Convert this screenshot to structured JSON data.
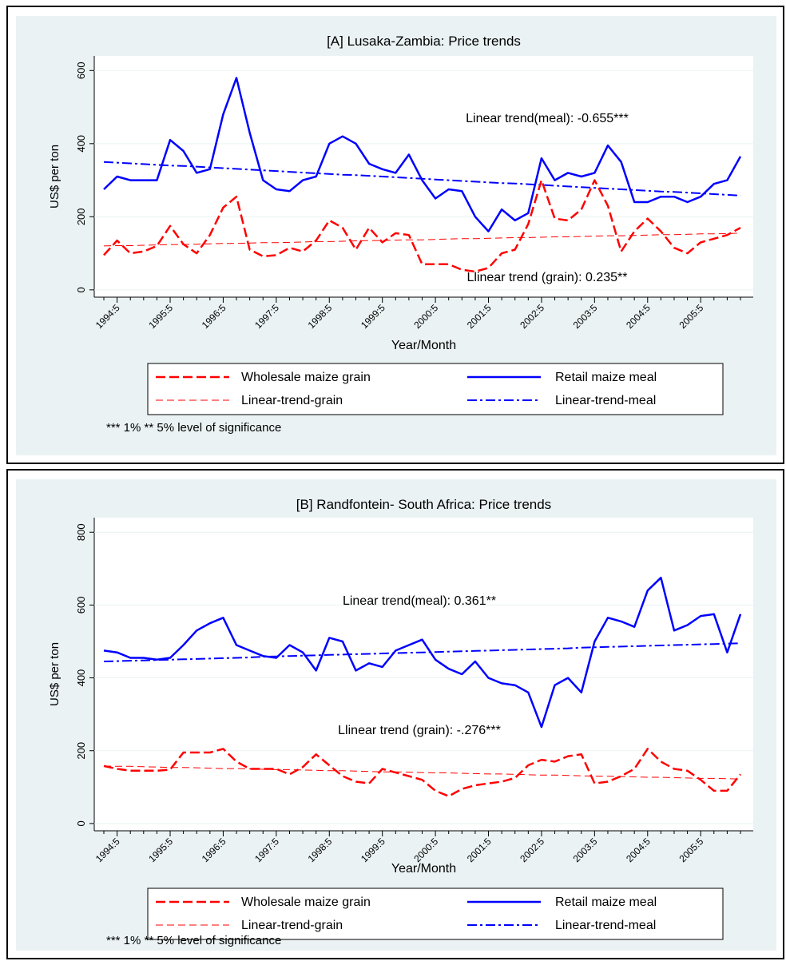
{
  "chart_data": [
    {
      "type": "line",
      "title": "[A] Lusaka-Zambia: Price trends",
      "x_label": "Year/Month",
      "y_label": "US$ per ton",
      "categories": [
        null,
        "1994:5",
        null,
        null,
        null,
        "1995:5",
        null,
        null,
        null,
        "1996:5",
        null,
        null,
        null,
        "1997:5",
        null,
        null,
        null,
        "1998:5",
        null,
        null,
        null,
        "1999:5",
        null,
        null,
        null,
        "2000:5",
        null,
        null,
        null,
        "2001:5",
        null,
        null,
        null,
        "2002:5",
        null,
        null,
        null,
        "2003:5",
        null,
        null,
        null,
        "2004:5",
        null,
        null,
        null,
        "2005:5",
        null,
        null,
        null
      ],
      "ylim": [
        -20,
        640
      ],
      "yticks": [
        0,
        200,
        400,
        600
      ],
      "grid": true,
      "series": [
        {
          "name": "Wholesale maize grain",
          "color": "#ff0000",
          "line_style": "dashed",
          "line_width": 2.5,
          "values": [
            95,
            135,
            100,
            105,
            120,
            175,
            125,
            100,
            150,
            225,
            255,
            110,
            92,
            95,
            115,
            105,
            135,
            190,
            170,
            110,
            170,
            130,
            155,
            150,
            70,
            70,
            70,
            55,
            50,
            60,
            100,
            110,
            180,
            300,
            195,
            190,
            220,
            300,
            230,
            105,
            160,
            195,
            160,
            115,
            100,
            130,
            140,
            150,
            170
          ]
        },
        {
          "name": "Retail maize meal",
          "color": "#0000ff",
          "line_style": "solid",
          "line_width": 2.5,
          "values": [
            275,
            310,
            300,
            300,
            300,
            410,
            380,
            320,
            330,
            480,
            580,
            430,
            300,
            275,
            270,
            300,
            310,
            400,
            420,
            400,
            345,
            330,
            320,
            370,
            300,
            250,
            275,
            270,
            200,
            160,
            220,
            190,
            210,
            360,
            300,
            320,
            310,
            320,
            395,
            350,
            240,
            240,
            255,
            255,
            240,
            255,
            290,
            300,
            365
          ]
        },
        {
          "name": "Linear-trend-grain",
          "color": "#ff0000",
          "line_style": "dashed",
          "line_width": 1,
          "values": [
            120,
            121,
            121,
            122,
            123,
            124,
            124,
            125,
            126,
            127,
            127,
            128,
            129,
            129,
            130,
            131,
            132,
            132,
            133,
            134,
            135,
            135,
            136,
            137,
            137,
            138,
            139,
            140,
            140,
            141,
            142,
            143,
            143,
            144,
            145,
            145,
            146,
            147,
            148,
            148,
            149,
            150,
            151,
            151,
            152,
            153,
            153,
            154,
            155
          ]
        },
        {
          "name": "Linear-trend-meal",
          "color": "#0000ff",
          "line_style": "dashdot",
          "line_width": 2,
          "values": [
            350,
            348,
            346,
            344,
            342,
            340,
            339,
            337,
            335,
            333,
            331,
            329,
            327,
            325,
            323,
            321,
            319,
            317,
            315,
            314,
            312,
            310,
            308,
            306,
            304,
            302,
            300,
            298,
            296,
            294,
            292,
            291,
            289,
            287,
            285,
            283,
            281,
            279,
            277,
            275,
            273,
            271,
            269,
            268,
            266,
            264,
            262,
            260,
            258
          ]
        }
      ],
      "annotations": [
        "Linear trend(meal): -0.655***",
        "Llinear trend (grain): 0.235**"
      ],
      "note": "*** 1%  ** 5% level of significance"
    },
    {
      "type": "line",
      "title": "[B] Randfontein- South Africa: Price trends",
      "x_label": "Year/Month",
      "y_label": "US$ per ton",
      "categories": [
        null,
        "1994:5",
        null,
        null,
        null,
        "1995:5",
        null,
        null,
        null,
        "1996:5",
        null,
        null,
        null,
        "1997:5",
        null,
        null,
        null,
        "1998:5",
        null,
        null,
        null,
        "1999:5",
        null,
        null,
        null,
        "2000:5",
        null,
        null,
        null,
        "2001:5",
        null,
        null,
        null,
        "2002:5",
        null,
        null,
        null,
        "2003:5",
        null,
        null,
        null,
        "2004:5",
        null,
        null,
        null,
        "2005:5",
        null,
        null,
        null
      ],
      "ylim": [
        -20,
        840
      ],
      "yticks": [
        0,
        200,
        400,
        600,
        800
      ],
      "grid": true,
      "series": [
        {
          "name": "Wholesale maize grain",
          "color": "#ff0000",
          "line_style": "dashed",
          "line_width": 2.5,
          "values": [
            158,
            150,
            145,
            145,
            145,
            148,
            195,
            195,
            195,
            205,
            170,
            150,
            150,
            150,
            135,
            155,
            190,
            160,
            130,
            115,
            110,
            150,
            140,
            130,
            120,
            90,
            75,
            95,
            105,
            110,
            115,
            125,
            160,
            175,
            170,
            185,
            190,
            110,
            115,
            130,
            150,
            205,
            170,
            150,
            145,
            120,
            90,
            90,
            135
          ]
        },
        {
          "name": "Retail maize meal",
          "color": "#0000ff",
          "line_style": "solid",
          "line_width": 2.5,
          "values": [
            475,
            470,
            455,
            455,
            450,
            455,
            490,
            530,
            550,
            565,
            490,
            475,
            460,
            455,
            490,
            470,
            420,
            510,
            500,
            420,
            440,
            430,
            475,
            490,
            505,
            450,
            425,
            410,
            445,
            400,
            385,
            380,
            360,
            265,
            380,
            400,
            360,
            500,
            565,
            555,
            540,
            640,
            675,
            530,
            545,
            570,
            575,
            470,
            575
          ]
        },
        {
          "name": "Linear-trend-grain",
          "color": "#ff0000",
          "line_style": "dashed",
          "line_width": 1,
          "values": [
            158,
            157,
            157,
            156,
            155,
            154,
            154,
            153,
            152,
            151,
            151,
            150,
            149,
            148,
            148,
            147,
            146,
            145,
            145,
            144,
            143,
            142,
            142,
            141,
            140,
            139,
            139,
            138,
            137,
            136,
            136,
            135,
            134,
            133,
            133,
            132,
            131,
            130,
            130,
            129,
            128,
            127,
            127,
            126,
            125,
            124,
            124,
            123,
            122
          ]
        },
        {
          "name": "Linear-trend-meal",
          "color": "#0000ff",
          "line_style": "dashdot",
          "line_width": 2,
          "values": [
            445,
            446,
            447,
            448,
            449,
            450,
            451,
            452,
            453,
            454,
            455,
            456,
            458,
            459,
            460,
            461,
            462,
            463,
            464,
            465,
            466,
            467,
            468,
            469,
            470,
            471,
            472,
            473,
            474,
            475,
            476,
            477,
            478,
            479,
            480,
            481,
            483,
            484,
            485,
            486,
            487,
            488,
            489,
            490,
            491,
            492,
            493,
            494,
            495
          ]
        }
      ],
      "annotations": [
        "Linear trend(meal): 0.361**",
        "Llinear trend (grain): -.276***"
      ],
      "note": "*** 1%  ** 5%  level of significance"
    }
  ]
}
